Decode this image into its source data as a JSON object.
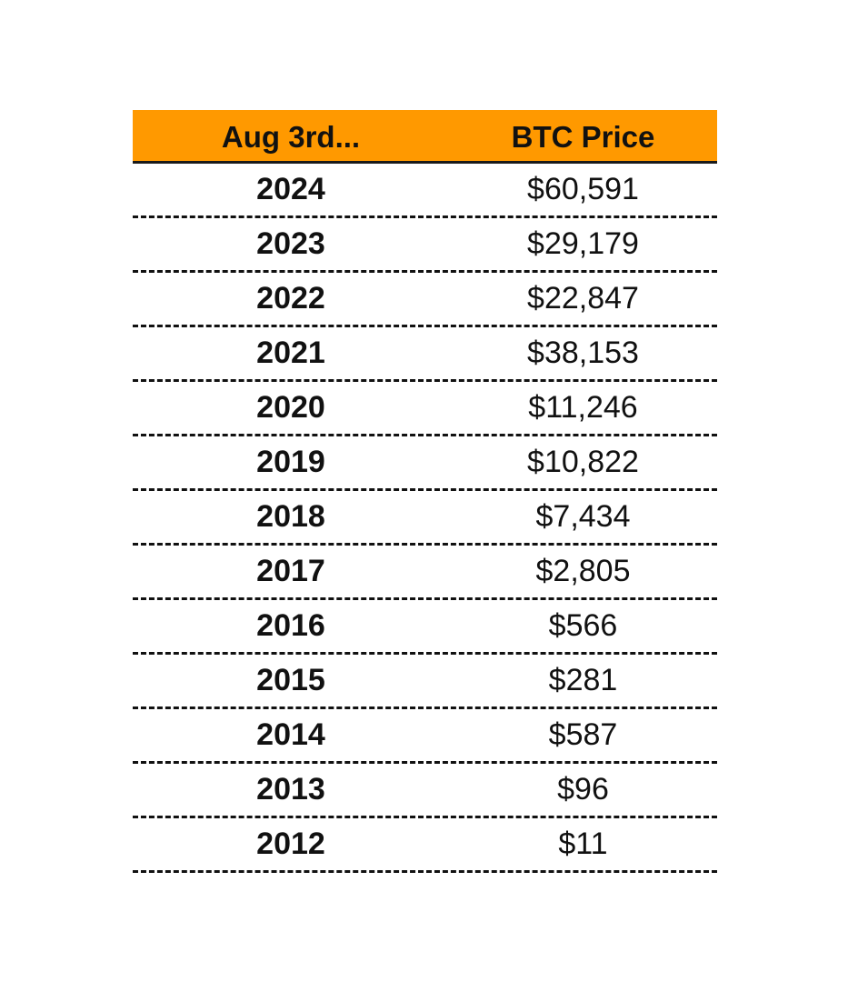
{
  "table": {
    "columns": [
      "Aug 3rd...",
      "BTC Price"
    ],
    "rows": [
      {
        "year": "2024",
        "price": "$60,591"
      },
      {
        "year": "2023",
        "price": "$29,179"
      },
      {
        "year": "2022",
        "price": "$22,847"
      },
      {
        "year": "2021",
        "price": "$38,153"
      },
      {
        "year": "2020",
        "price": "$11,246"
      },
      {
        "year": "2019",
        "price": "$10,822"
      },
      {
        "year": "2018",
        "price": "$7,434"
      },
      {
        "year": "2017",
        "price": "$2,805"
      },
      {
        "year": "2016",
        "price": "$566"
      },
      {
        "year": "2015",
        "price": "$281"
      },
      {
        "year": "2014",
        "price": "$587"
      },
      {
        "year": "2013",
        "price": "$96"
      },
      {
        "year": "2012",
        "price": "$11"
      }
    ]
  },
  "colors": {
    "header_background": "#ff9900",
    "text": "#111111"
  }
}
